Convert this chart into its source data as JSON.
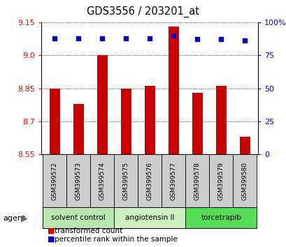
{
  "title": "GDS3556 / 203201_at",
  "samples": [
    "GSM399572",
    "GSM399573",
    "GSM399574",
    "GSM399575",
    "GSM399576",
    "GSM399577",
    "GSM399578",
    "GSM399579",
    "GSM399580"
  ],
  "red_values": [
    8.85,
    8.78,
    9.0,
    8.85,
    8.86,
    9.13,
    8.83,
    8.86,
    8.63
  ],
  "blue_percentiles": [
    88,
    88,
    88,
    88,
    88,
    90,
    87,
    87,
    86
  ],
  "ylim_left": [
    8.55,
    9.15
  ],
  "ylim_right": [
    0,
    100
  ],
  "left_ticks": [
    8.55,
    8.7,
    8.85,
    9.0,
    9.15
  ],
  "right_ticks": [
    0,
    25,
    50,
    75,
    100
  ],
  "right_tick_labels": [
    "0",
    "25",
    "50",
    "75",
    "100%"
  ],
  "groups": [
    {
      "label": "solvent control",
      "start": 0,
      "end": 3,
      "color": "#b8e8b0"
    },
    {
      "label": "angiotensin II",
      "start": 3,
      "end": 6,
      "color": "#ccf0c0"
    },
    {
      "label": "torcetrapib",
      "start": 6,
      "end": 9,
      "color": "#55dd55"
    }
  ],
  "bar_color": "#cc0000",
  "dot_color": "#0000cc",
  "bar_bottom": 8.55,
  "bar_width": 0.45,
  "sample_box_color": "#cccccc",
  "agent_label": "agent"
}
